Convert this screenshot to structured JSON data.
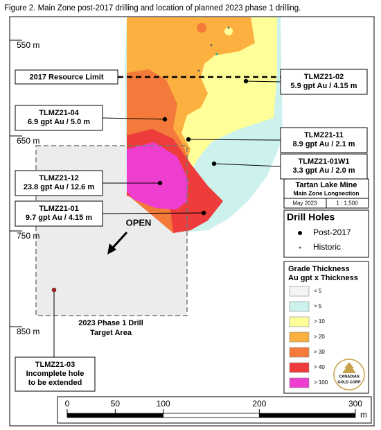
{
  "title": "Figure 2. Main Zone post-2017 drilling and location of planned 2023 phase 1 drilling.",
  "depth_labels": [
    "550 m",
    "650 m",
    "750 m",
    "850 m"
  ],
  "resource_limit": "2017 Resource Limit",
  "drill_holes": [
    {
      "id": "TLMZ21-02",
      "lines": [
        "5.9 gpt Au / 4.15 m"
      ]
    },
    {
      "id": "TLMZ21-04",
      "lines": [
        "6.9 gpt Au / 5.0 m"
      ]
    },
    {
      "id": "TLMZ21-11",
      "lines": [
        "8.9 gpt Au / 2.1 m"
      ]
    },
    {
      "id": "TLMZ21-01W1",
      "lines": [
        "3.3 gpt Au / 2.0 m"
      ]
    },
    {
      "id": "TLMZ21-12",
      "lines": [
        "23.8 gpt Au / 12.6 m"
      ]
    },
    {
      "id": "TLMZ21-01",
      "lines": [
        "9.7 gpt Au / 4.15 m"
      ]
    },
    {
      "id": "TLMZ21-03",
      "lines": [
        "Incomplete hole",
        "to be extended"
      ]
    }
  ],
  "open_label": "OPEN",
  "target_area": [
    "2023 Phase 1 Drill",
    "Target Area"
  ],
  "title_block": {
    "mine": "Tartan Lake Mine",
    "section": "Main Zone Longsection",
    "date": "May 2023",
    "scale": "1 : 1,500"
  },
  "drill_hole_legend": {
    "title": "Drill Holes",
    "items": [
      "Post-2017",
      "Historic"
    ]
  },
  "grade_legend": {
    "title": [
      "Grade Thickness",
      "Au gpt x Thickness"
    ],
    "items": [
      {
        "label": "< 5",
        "color": "#f4f4f4"
      },
      {
        "label": "> 5",
        "color": "#cdf2ee"
      },
      {
        "label": "> 10",
        "color": "#ffff99"
      },
      {
        "label": "> 20",
        "color": "#fbb040"
      },
      {
        "label": "> 30",
        "color": "#f47a3c"
      },
      {
        "label": "> 40",
        "color": "#ee3b3b"
      },
      {
        "label": "> 100",
        "color": "#ee3ed0"
      }
    ]
  },
  "logo": [
    "CANADIAN",
    "GOLD CORP"
  ],
  "scale_bar": {
    "ticks": [
      0,
      50,
      100,
      200,
      300
    ],
    "unit": "m"
  }
}
